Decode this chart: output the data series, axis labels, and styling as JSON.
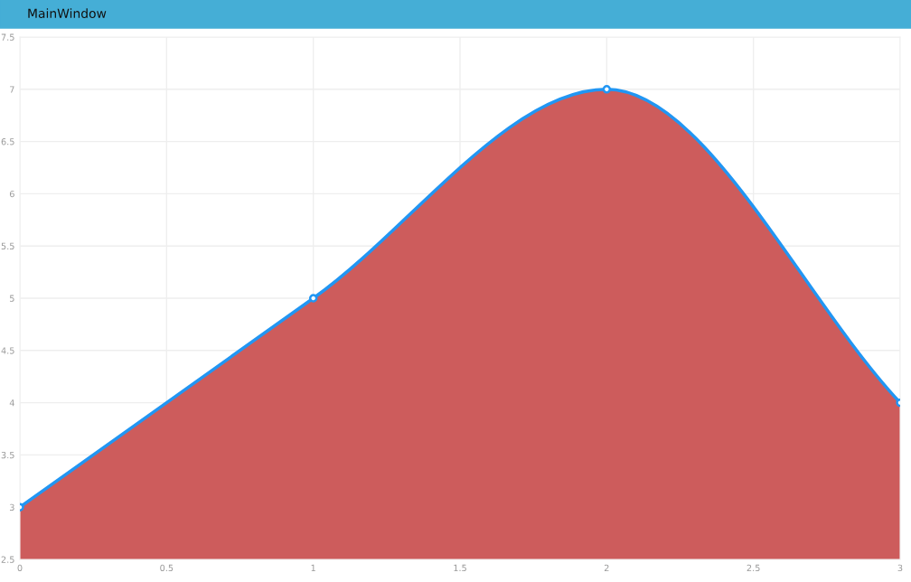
{
  "chart_data": {
    "type": "area",
    "title": "MainWindow",
    "x": [
      0,
      1,
      2,
      3
    ],
    "series": [
      {
        "color": "#cd5c5c",
        "values": [
          3,
          5,
          7,
          4
        ]
      },
      {
        "type": "line",
        "color": "#2196f3",
        "marker": "circle",
        "values": [
          3,
          5,
          7,
          4
        ]
      }
    ],
    "xlim": [
      0,
      3
    ],
    "xticks": [
      0,
      0.5,
      1,
      1.5,
      2,
      2.5,
      3
    ],
    "ylim": [
      2.5,
      7.5
    ],
    "yticks": [
      2.5,
      3,
      3.5,
      4,
      4.5,
      5,
      5.5,
      6,
      6.5,
      7,
      7.5
    ],
    "grid": true,
    "line_style": "solid"
  }
}
